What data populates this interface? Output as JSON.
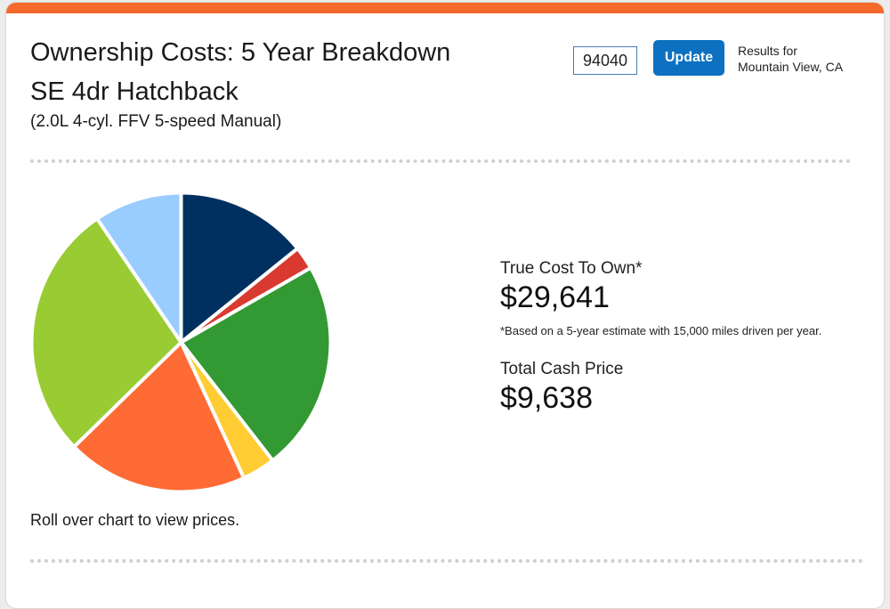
{
  "header": {
    "title": "Ownership Costs: 5 Year Breakdown",
    "trim": "SE 4dr Hatchback",
    "engine": "(2.0L 4-cyl. FFV 5-speed Manual)"
  },
  "location": {
    "zip_value": "94040",
    "update_label": "Update",
    "results_line1": "Results for",
    "results_line2": "Mountain View, CA"
  },
  "summary": {
    "true_cost_label": "True Cost To Own*",
    "true_cost_value": "$29,641",
    "footnote": "*Based on a 5-year estimate with 15,000 miles driven per year.",
    "cash_price_label": "Total Cash Price",
    "cash_price_value": "$9,638"
  },
  "chart_hint": "Roll over chart to view prices.",
  "chart_data": {
    "type": "pie",
    "slice_share_percent": [
      14.2,
      2.5,
      22.8,
      3.6,
      19.6,
      27.8,
      9.5
    ],
    "slice_colors": [
      "#00305f",
      "#d93a2f",
      "#339933",
      "#ffcc33",
      "#ff6b35",
      "#99cc33",
      "#99ccff"
    ]
  }
}
